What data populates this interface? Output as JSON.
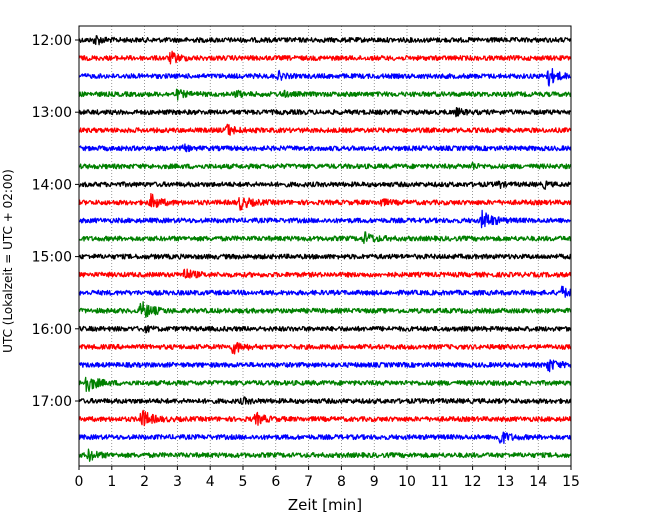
{
  "chart_data": {
    "type": "line",
    "title": "",
    "xlabel": "Zeit  [min]",
    "ylabel": "UTC (Lokalzeit = UTC + 02:00)",
    "xlim": [
      0,
      15
    ],
    "x_ticks": [
      "0",
      "1",
      "2",
      "3",
      "4",
      "5",
      "6",
      "7",
      "8",
      "9",
      "10",
      "11",
      "12",
      "13",
      "14",
      "15"
    ],
    "y_ticks": [
      "12:00",
      "13:00",
      "14:00",
      "15:00",
      "16:00",
      "17:00"
    ],
    "grid": "vertical dotted lines at each minute",
    "trace_colors": [
      "#000000",
      "#ff0000",
      "#0000ff",
      "#008000"
    ],
    "traces": [
      {
        "start": "12:00",
        "events": [
          {
            "t": 0.5,
            "amp": 0.5,
            "dur": 0.4
          }
        ]
      },
      {
        "start": "12:15",
        "events": [
          {
            "t": 2.8,
            "amp": 0.55,
            "dur": 0.5
          }
        ]
      },
      {
        "start": "12:30",
        "events": [
          {
            "t": 6.1,
            "amp": 0.35,
            "dur": 0.3
          },
          {
            "t": 14.3,
            "amp": 1.0,
            "dur": 0.5
          }
        ]
      },
      {
        "start": "12:45",
        "events": [
          {
            "t": 3.0,
            "amp": 0.4,
            "dur": 0.4
          },
          {
            "t": 4.8,
            "amp": 0.3,
            "dur": 0.3
          },
          {
            "t": 6.2,
            "amp": 0.3,
            "dur": 0.3
          }
        ]
      },
      {
        "start": "13:00",
        "events": [
          {
            "t": 11.5,
            "amp": 0.3,
            "dur": 0.4
          }
        ]
      },
      {
        "start": "13:15",
        "events": [
          {
            "t": 4.5,
            "amp": 0.55,
            "dur": 0.5
          }
        ]
      },
      {
        "start": "13:30",
        "events": [
          {
            "t": 3.2,
            "amp": 0.25,
            "dur": 0.3
          }
        ]
      },
      {
        "start": "13:45",
        "events": [
          {
            "t": 12.0,
            "amp": 0.35,
            "dur": 0.2
          }
        ]
      },
      {
        "start": "14:00",
        "events": [
          {
            "t": 12.8,
            "amp": 0.35,
            "dur": 0.2
          },
          {
            "t": 14.2,
            "amp": 0.3,
            "dur": 0.2
          }
        ]
      },
      {
        "start": "14:15",
        "events": [
          {
            "t": 2.2,
            "amp": 0.75,
            "dur": 0.5
          },
          {
            "t": 4.9,
            "amp": 0.65,
            "dur": 0.6
          },
          {
            "t": 9.2,
            "amp": 0.3,
            "dur": 0.4
          }
        ]
      },
      {
        "start": "14:30",
        "events": [
          {
            "t": 12.3,
            "amp": 0.95,
            "dur": 0.6
          }
        ]
      },
      {
        "start": "14:45",
        "events": [
          {
            "t": 8.7,
            "amp": 0.55,
            "dur": 0.6
          }
        ]
      },
      {
        "start": "15:00",
        "events": []
      },
      {
        "start": "15:15",
        "events": [
          {
            "t": 3.2,
            "amp": 0.6,
            "dur": 0.5
          }
        ]
      },
      {
        "start": "15:30",
        "events": [
          {
            "t": 14.7,
            "amp": 0.6,
            "dur": 0.4
          }
        ]
      },
      {
        "start": "15:45",
        "events": [
          {
            "t": 1.9,
            "amp": 0.9,
            "dur": 0.6
          }
        ]
      },
      {
        "start": "16:00",
        "events": [
          {
            "t": 2.0,
            "amp": 0.25,
            "dur": 0.3
          }
        ]
      },
      {
        "start": "16:15",
        "events": [
          {
            "t": 4.7,
            "amp": 0.65,
            "dur": 0.5
          }
        ]
      },
      {
        "start": "16:30",
        "events": [
          {
            "t": 14.3,
            "amp": 0.65,
            "dur": 0.5
          }
        ]
      },
      {
        "start": "16:45",
        "events": [
          {
            "t": 0.2,
            "amp": 0.95,
            "dur": 0.6
          }
        ]
      },
      {
        "start": "17:00",
        "events": [
          {
            "t": 5.0,
            "amp": 0.25,
            "dur": 0.4
          }
        ]
      },
      {
        "start": "17:15",
        "events": [
          {
            "t": 1.9,
            "amp": 0.9,
            "dur": 0.6
          },
          {
            "t": 5.4,
            "amp": 0.55,
            "dur": 0.5
          }
        ]
      },
      {
        "start": "17:30",
        "events": [
          {
            "t": 12.8,
            "amp": 0.8,
            "dur": 0.5
          }
        ]
      },
      {
        "start": "17:45",
        "events": [
          {
            "t": 0.3,
            "amp": 0.5,
            "dur": 0.5
          }
        ]
      }
    ]
  }
}
